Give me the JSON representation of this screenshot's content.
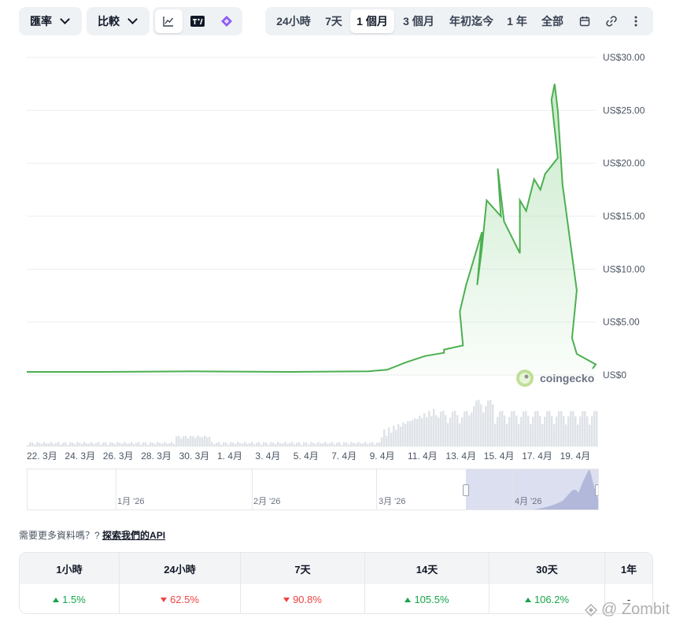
{
  "toolbar": {
    "left_dropdowns": [
      {
        "label": "匯率",
        "icon": "chevron-down-icon"
      },
      {
        "label": "比較",
        "icon": "chevron-down-icon"
      }
    ],
    "chart_types": [
      {
        "icon": "line-chart-icon",
        "active": true
      },
      {
        "icon": "tradingview-icon",
        "active": false
      },
      {
        "icon": "sparkle-logo-icon",
        "active": false
      }
    ],
    "ranges": [
      "24小時",
      "7天",
      "1 個月",
      "3 個月",
      "年初迄今",
      "1 年",
      "全部"
    ],
    "active_range": "1 個月",
    "extra_icons": [
      "calendar-icon",
      "link-icon",
      "more-vertical-icon"
    ]
  },
  "colors": {
    "line": "#4caf50",
    "fill_top": "#9bd89e",
    "volume": "#dfe3e8",
    "navigator_selection": "#c5cae6"
  },
  "brand": {
    "name": "coingecko"
  },
  "chart_data": {
    "type": "line",
    "currency_prefix": "US$",
    "y_ticks": [
      "US$30.00",
      "US$25.00",
      "US$20.00",
      "US$15.00",
      "US$10.00",
      "US$5.00",
      "US$0"
    ],
    "ylim": [
      0,
      30
    ],
    "x_ticks": [
      "22. 3月",
      "24. 3月",
      "26. 3月",
      "28. 3月",
      "30. 3月",
      "1. 4月",
      "3. 4月",
      "5. 4月",
      "7. 4月",
      "9. 4月",
      "11. 4月",
      "13. 4月",
      "15. 4月",
      "17. 4月",
      "19. 4月"
    ],
    "series": [
      {
        "x": [
          "2026-03-21",
          "2026-03-25",
          "2026-03-30",
          "2026-04-04",
          "2026-04-08",
          "2026-04-09",
          "2026-04-10",
          "2026-04-11",
          "2026-04-12",
          "2026-04-12 12:00",
          "2026-04-13",
          "2026-04-13 08:00",
          "2026-04-13 16:00",
          "2026-04-14",
          "2026-04-14 06:00",
          "2026-04-14 12:00",
          "2026-04-14 18:00",
          "2026-04-15",
          "2026-04-15 08:00",
          "2026-04-15 16:00",
          "2026-04-16",
          "2026-04-16 12:00",
          "2026-04-16 20:00",
          "2026-04-17 06:00",
          "2026-04-17 14:00",
          "2026-04-17 20:00",
          "2026-04-18",
          "2026-04-18 04:00",
          "2026-04-18 08:00",
          "2026-04-18 12:00",
          "2026-04-18 18:00",
          "2026-04-19",
          "2026-04-19 06:00",
          "2026-04-19 12:00",
          "2026-04-20",
          "2026-04-20 08:00"
        ],
        "y": [
          0.3,
          0.3,
          0.35,
          0.3,
          0.35,
          0.5,
          1.2,
          1.8,
          2.1,
          2.4,
          2.8,
          6.0,
          8.5,
          13.5,
          8.5,
          12.0,
          16.5,
          15.0,
          19.5,
          14.5,
          11.5,
          16.5,
          15.5,
          18.5,
          17.5,
          19.0,
          20.5,
          26.0,
          27.5,
          25.0,
          18.0,
          8.0,
          3.5,
          2.0,
          1.0,
          0.6
        ]
      }
    ],
    "volume_visible": true
  },
  "navigator": {
    "labels": [
      "1月 '26",
      "2月 '26",
      "3月 '26",
      "4月 '26"
    ]
  },
  "api_prompt": {
    "text": "需要更多資料嗎？?",
    "link": "探索我們的API"
  },
  "performance": {
    "headers": [
      "1小時",
      "24小時",
      "7天",
      "14天",
      "30天",
      "1年"
    ],
    "values": [
      {
        "value": "1.5%",
        "dir": "up"
      },
      {
        "value": "62.5%",
        "dir": "down"
      },
      {
        "value": "90.8%",
        "dir": "down"
      },
      {
        "value": "105.5%",
        "dir": "up"
      },
      {
        "value": "106.2%",
        "dir": "up"
      },
      {
        "value": "-",
        "dir": "none"
      }
    ]
  },
  "watermark": {
    "text": "@ Zombit"
  }
}
